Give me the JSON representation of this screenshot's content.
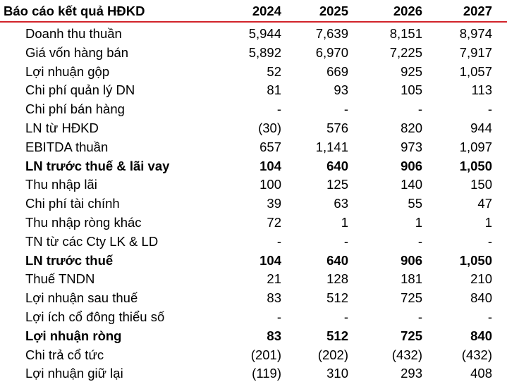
{
  "table": {
    "title": "Báo cáo kết quả HĐKD",
    "years": [
      "2024",
      "2025",
      "2026",
      "2027"
    ],
    "rows": [
      {
        "label": "Doanh thu thuần",
        "bold": false,
        "values": [
          "5,944",
          "7,639",
          "8,151",
          "8,974"
        ]
      },
      {
        "label": "Giá vốn hàng bán",
        "bold": false,
        "values": [
          "5,892",
          "6,970",
          "7,225",
          "7,917"
        ]
      },
      {
        "label": "Lợi nhuận gộp",
        "bold": false,
        "values": [
          "52",
          "669",
          "925",
          "1,057"
        ]
      },
      {
        "label": "Chi phí quản lý DN",
        "bold": false,
        "values": [
          "81",
          "93",
          "105",
          "113"
        ]
      },
      {
        "label": "Chi phí bán hàng",
        "bold": false,
        "values": [
          "-",
          "-",
          "-",
          "-"
        ]
      },
      {
        "label": "LN từ HĐKD",
        "bold": false,
        "values": [
          "(30)",
          "576",
          "820",
          "944"
        ]
      },
      {
        "label": "EBITDA thuần",
        "bold": false,
        "values": [
          "657",
          "1,141",
          "973",
          "1,097"
        ]
      },
      {
        "label": "LN trước thuế & lãi vay",
        "bold": true,
        "values": [
          "104",
          "640",
          "906",
          "1,050"
        ]
      },
      {
        "label": "Thu nhập lãi",
        "bold": false,
        "values": [
          "100",
          "125",
          "140",
          "150"
        ]
      },
      {
        "label": "Chi phí tài chính",
        "bold": false,
        "values": [
          "39",
          "63",
          "55",
          "47"
        ]
      },
      {
        "label": "Thu nhập ròng khác",
        "bold": false,
        "values": [
          "72",
          "1",
          "1",
          "1"
        ]
      },
      {
        "label": "TN từ các Cty LK & LD",
        "bold": false,
        "values": [
          "-",
          "-",
          "-",
          "-"
        ]
      },
      {
        "label": "LN trước thuế",
        "bold": true,
        "values": [
          "104",
          "640",
          "906",
          "1,050"
        ]
      },
      {
        "label": "Thuế TNDN",
        "bold": false,
        "values": [
          "21",
          "128",
          "181",
          "210"
        ]
      },
      {
        "label": "Lợi nhuận sau thuế",
        "bold": false,
        "values": [
          "83",
          "512",
          "725",
          "840"
        ]
      },
      {
        "label": "Lợi ích cổ đông thiểu số",
        "bold": false,
        "values": [
          "-",
          "-",
          "-",
          "-"
        ]
      },
      {
        "label": "Lợi nhuận ròng",
        "bold": true,
        "values": [
          "83",
          "512",
          "725",
          "840"
        ]
      },
      {
        "label": "Chi trả cổ tức",
        "bold": false,
        "values": [
          "(201)",
          "(202)",
          "(432)",
          "(432)"
        ]
      },
      {
        "label": "Lợi nhuận giữ lại",
        "bold": false,
        "values": [
          "(119)",
          "310",
          "293",
          "408"
        ]
      }
    ]
  },
  "colors": {
    "header_rule": "#d2232a",
    "text": "#000000",
    "background": "#ffffff"
  }
}
